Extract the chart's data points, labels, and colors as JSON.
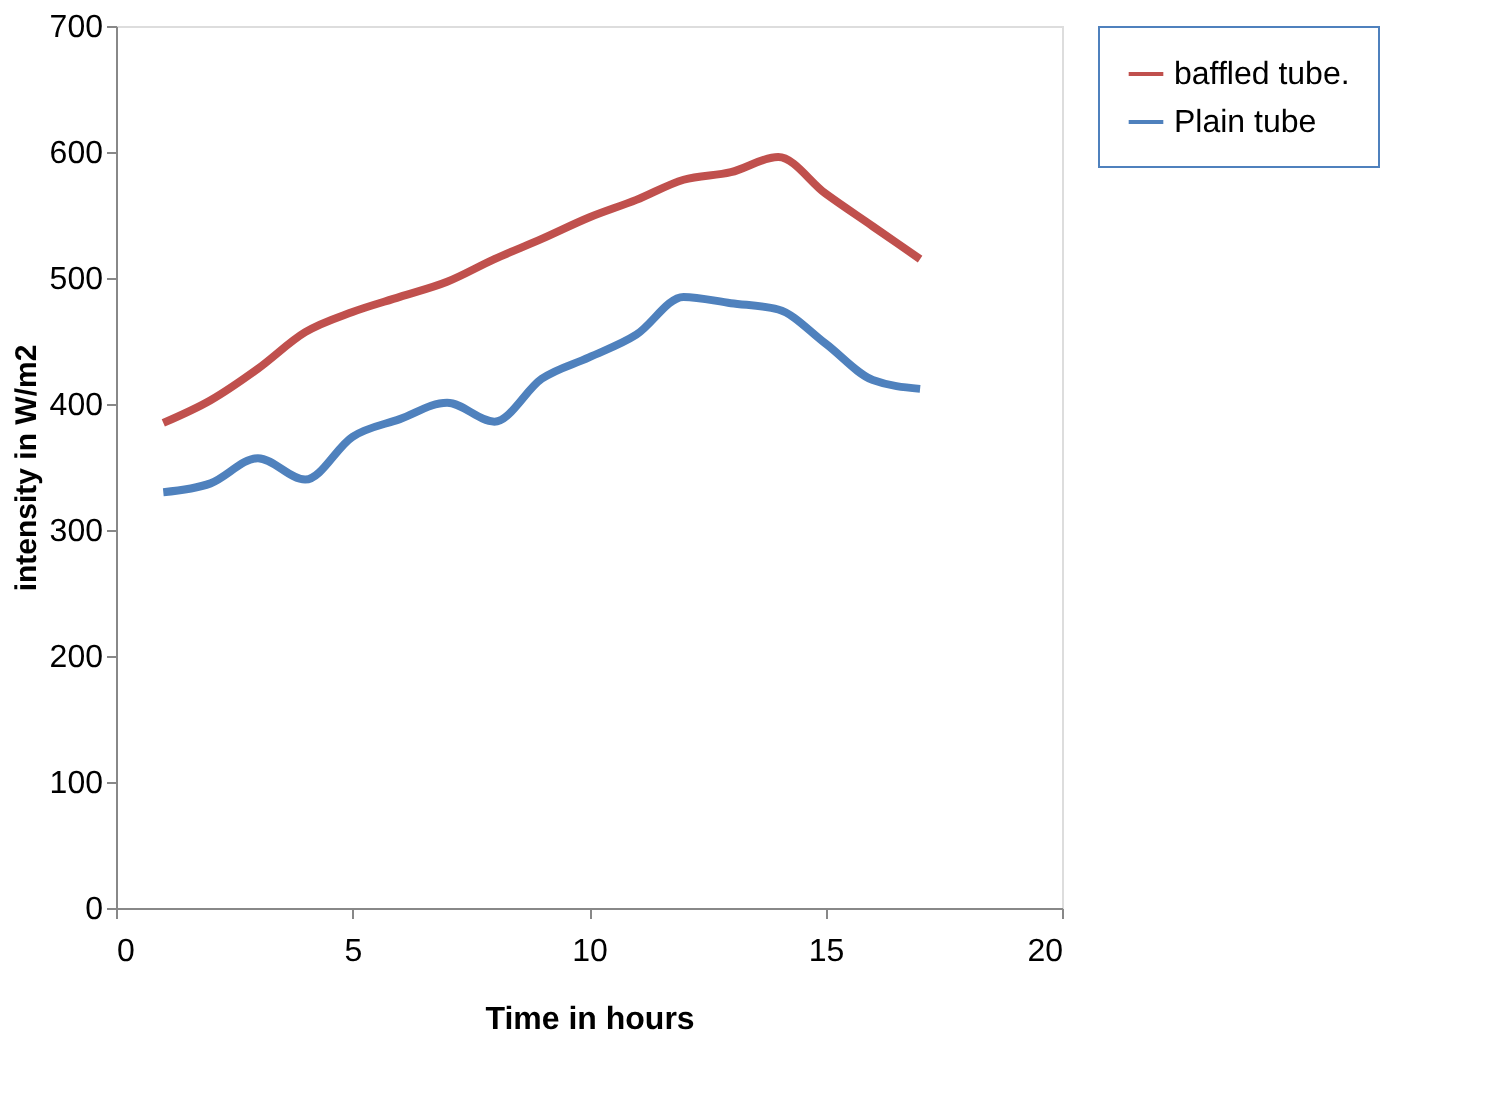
{
  "chart_data": {
    "type": "line",
    "xlabel": "Time in hours",
    "ylabel": "intensity in W/m2",
    "x": [
      1,
      2,
      3,
      4,
      5,
      6,
      7,
      8,
      9,
      10,
      11,
      12,
      13,
      14,
      15,
      16,
      17
    ],
    "series": [
      {
        "name": "baffled tube.",
        "color": "#c0504d",
        "values": [
          385,
          403,
          428,
          457,
          473,
          485,
          497,
          515,
          531,
          548,
          562,
          578,
          584,
          596,
          567,
          541,
          515
        ]
      },
      {
        "name": "Plain tube",
        "color": "#4f81bd",
        "values": [
          330,
          337,
          357,
          340,
          374,
          388,
          401,
          386,
          420,
          437,
          455,
          485,
          480,
          475,
          448,
          419,
          412
        ]
      }
    ],
    "xlim": [
      0,
      20
    ],
    "xticks": [
      0,
      5,
      10,
      15,
      20
    ],
    "ylim": [
      0,
      700
    ],
    "yticks": [
      0,
      100,
      200,
      300,
      400,
      500,
      600,
      700
    ],
    "grid": false,
    "legend": "right",
    "marker": "none",
    "line_style": "solid"
  }
}
